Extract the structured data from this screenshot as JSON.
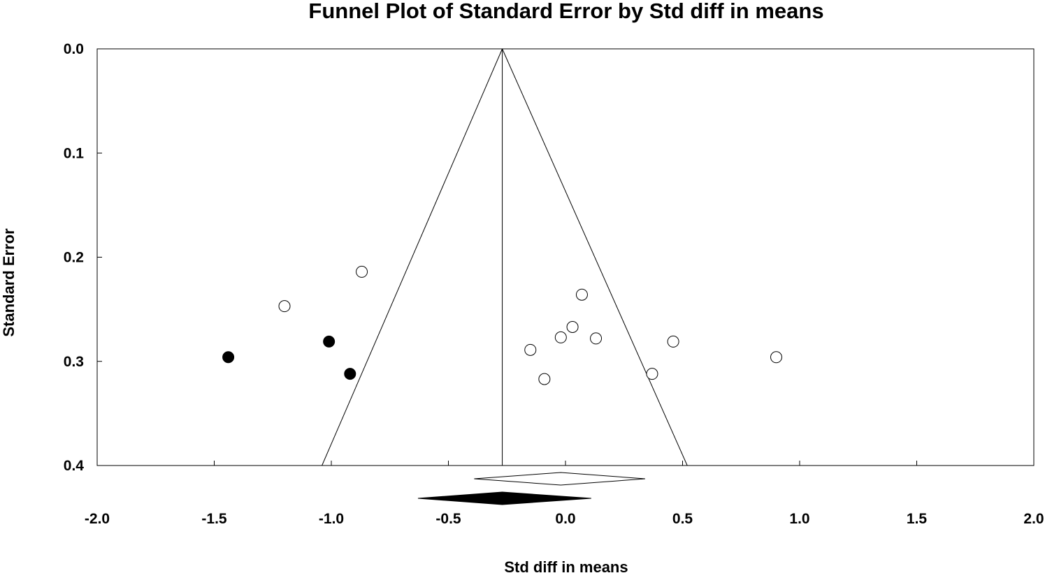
{
  "chart_data": {
    "type": "scatter",
    "title": "Funnel Plot of Standard Error by Std diff in means",
    "xlabel": "Std diff in means",
    "ylabel": "Standard Error",
    "xlim": [
      -2.0,
      2.0
    ],
    "ylim": [
      0.0,
      0.4
    ],
    "y_inverted": true,
    "x_ticks": [
      "-2.0",
      "-1.5",
      "-1.0",
      "-0.5",
      "0.0",
      "0.5",
      "1.0",
      "1.5",
      "2.0"
    ],
    "y_ticks": [
      "0.0",
      "0.1",
      "0.2",
      "0.3",
      "0.4"
    ],
    "grid": false,
    "funnel": {
      "center": -0.27,
      "lower_at_0_4": -1.04,
      "upper_at_0_4": 0.52
    },
    "series": [
      {
        "style": "observed-open",
        "points": [
          {
            "x": -0.87,
            "y": 0.214
          },
          {
            "x": -1.2,
            "y": 0.247
          },
          {
            "x": 0.07,
            "y": 0.236
          },
          {
            "x": 0.03,
            "y": 0.267
          },
          {
            "x": -0.02,
            "y": 0.277
          },
          {
            "x": 0.13,
            "y": 0.278
          },
          {
            "x": -0.15,
            "y": 0.289
          },
          {
            "x": -0.09,
            "y": 0.317
          },
          {
            "x": 0.37,
            "y": 0.312
          },
          {
            "x": 0.46,
            "y": 0.281
          },
          {
            "x": 0.9,
            "y": 0.296
          }
        ]
      },
      {
        "style": "imputed-filled",
        "points": [
          {
            "x": -1.44,
            "y": 0.296
          },
          {
            "x": -1.01,
            "y": 0.281
          },
          {
            "x": -0.92,
            "y": 0.312
          }
        ]
      }
    ],
    "summary_diamonds": [
      {
        "style": "observed-open",
        "point": -0.02,
        "lower": -0.39,
        "upper": 0.34
      },
      {
        "style": "imputed-filled",
        "point": -0.27,
        "lower": -0.63,
        "upper": 0.11
      }
    ]
  }
}
